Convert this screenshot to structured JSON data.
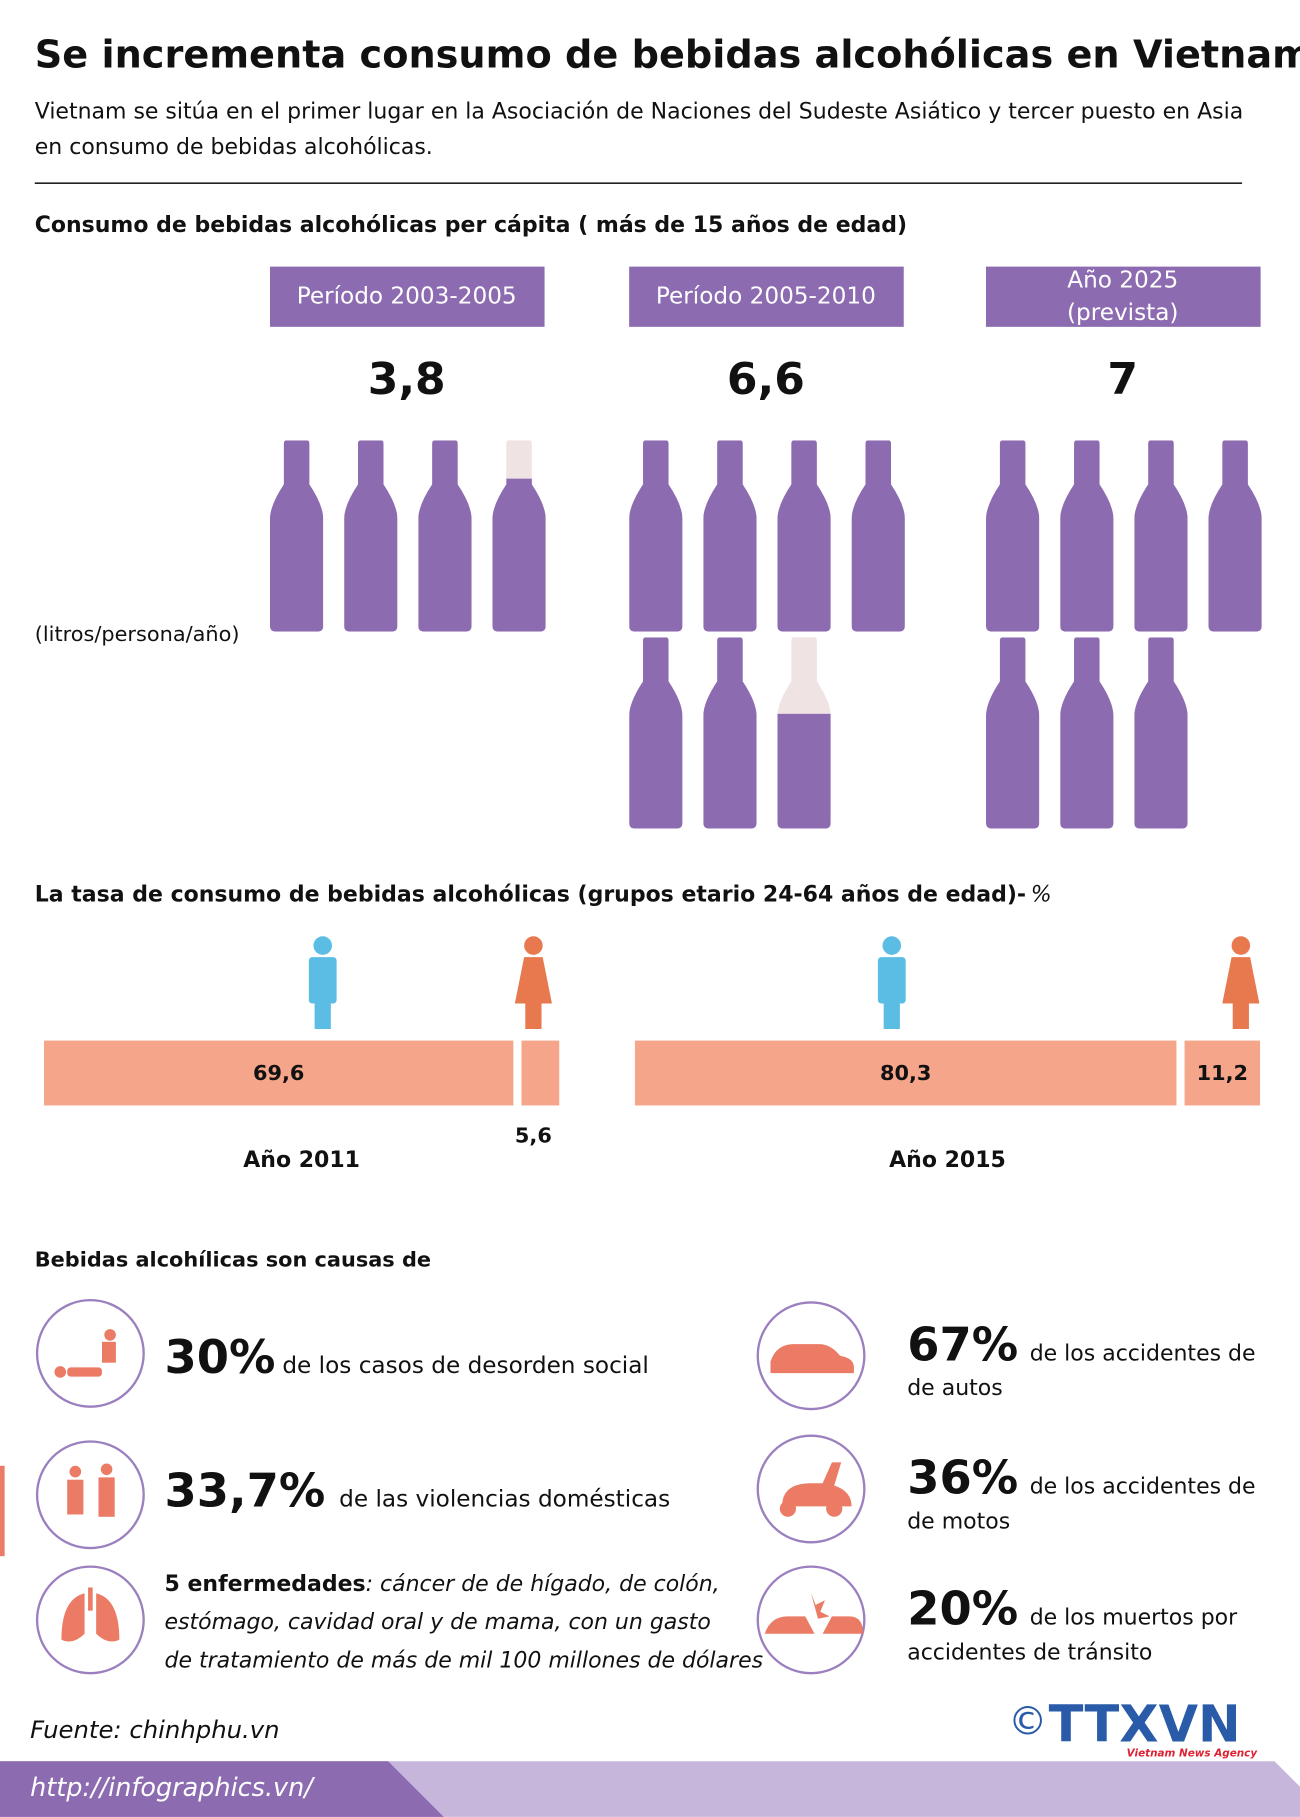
{
  "title": "Se incrementa consumo de bebidas alcohólicas en Vietnam",
  "subtitle": [
    "Vietnam se sitúa en el primer lugar en la Asociación de Naciones del Sudeste Asiático y tercer puesto en Asia",
    "en consumo de bebidas alcohólicas."
  ],
  "per_capita": {
    "heading": "Consumo de bebidas alcohólicas per cápita ( más de 15 años de edad)",
    "unit": "(litros/persona/año)",
    "periods": [
      {
        "label": [
          "Período 2003-2005"
        ],
        "value": 3.8,
        "value_label": "3,8"
      },
      {
        "label": [
          "Período  2005-2010"
        ],
        "value": 6.6,
        "value_label": "6,6"
      },
      {
        "label": [
          "Año 2025",
          "(prevista)"
        ],
        "value": 7,
        "value_label": "7"
      }
    ]
  },
  "rate": {
    "heading": "La tasa de consumo de bebidas alcohólicas (grupos etario 24-64 años de edad)-",
    "unit": "%",
    "groups": [
      {
        "year": "Año 2011",
        "male": 69.6,
        "male_label": "69,6",
        "female": 5.6,
        "female_label": "5,6"
      },
      {
        "year": "Año 2015",
        "male": 80.3,
        "male_label": "80,3",
        "female": 11.2,
        "female_label": "11,2"
      }
    ]
  },
  "causes": {
    "heading": "Bebidas alcohílicas son causas de",
    "left": [
      {
        "value_label": "30%",
        "text": "de los casos de desorden social"
      },
      {
        "value_label": "33,7%",
        "text": "de las violencias domésticas"
      },
      {
        "bold": "5 enfermedades",
        "lines": [
          ": cáncer de de hígado, de colón,",
          "estómago, cavidad oral y de mama, con un gasto",
          "de tratamiento de más de mil 100 millones de dólares"
        ]
      }
    ],
    "right": [
      {
        "value_label": "67%",
        "lines": [
          "de los accidentes de",
          "de autos"
        ]
      },
      {
        "value_label": "36%",
        "lines": [
          "de los accidentes de",
          "de motos"
        ]
      },
      {
        "value_label": "20%",
        "lines": [
          "de los muertos por",
          "accidentes de tránsito"
        ]
      }
    ]
  },
  "footer": {
    "source": "Fuente: chinhphu.vn",
    "url": "http://infographics.vn/",
    "copyright": "©",
    "logo": "TTXVN",
    "logo_sub": "Vietnam News Agency"
  }
}
